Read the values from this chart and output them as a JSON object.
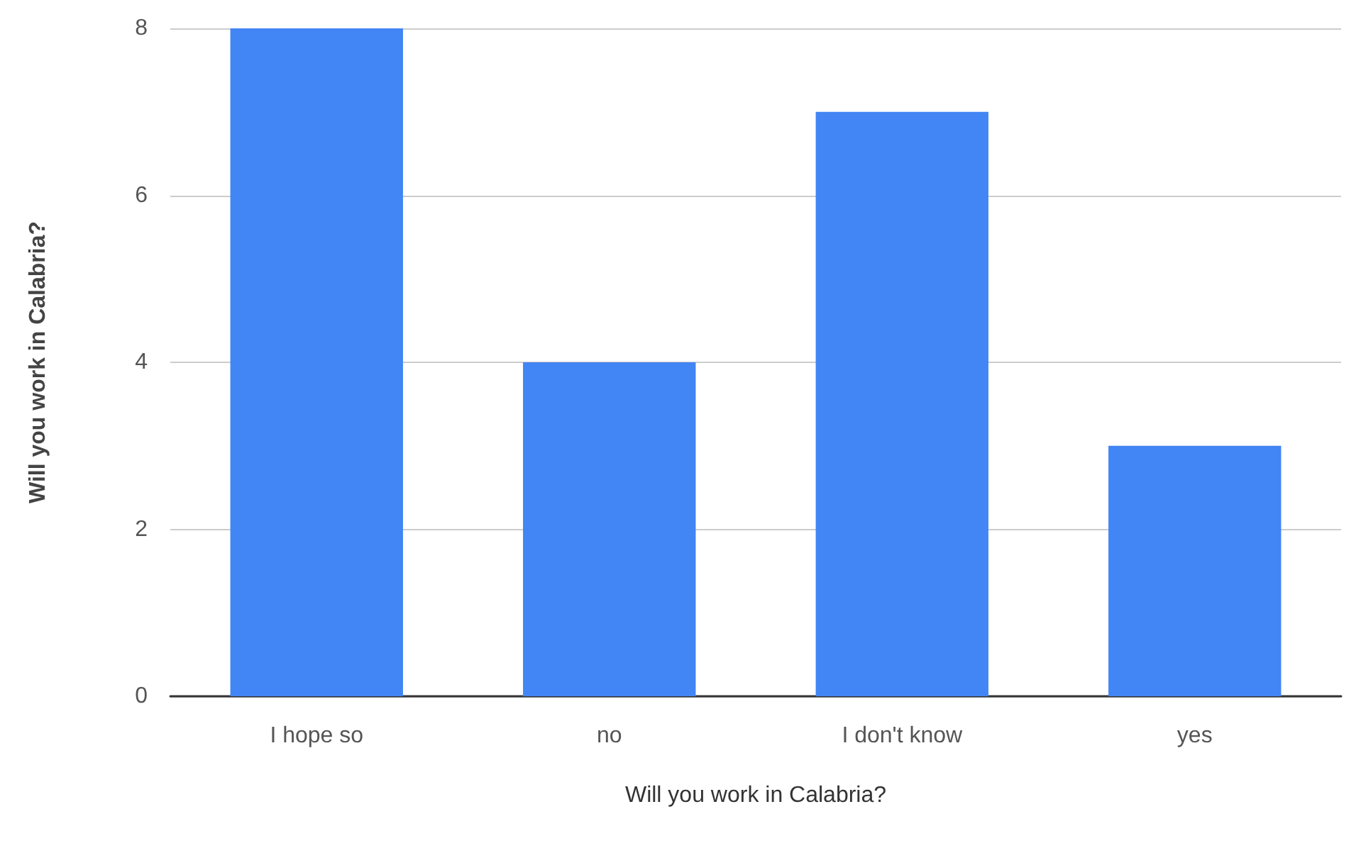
{
  "chart_data": {
    "type": "bar",
    "xlabel": "Will you work in Calabria?",
    "ylabel": "Will you work in Calabria?",
    "categories": [
      "I hope so",
      "no",
      "I don't know",
      "yes"
    ],
    "values": [
      8,
      4,
      7,
      3
    ],
    "color": "#4285f4",
    "ylim": [
      0,
      8
    ],
    "yticks": [
      0,
      2,
      4,
      6,
      8
    ],
    "grid": "y"
  }
}
